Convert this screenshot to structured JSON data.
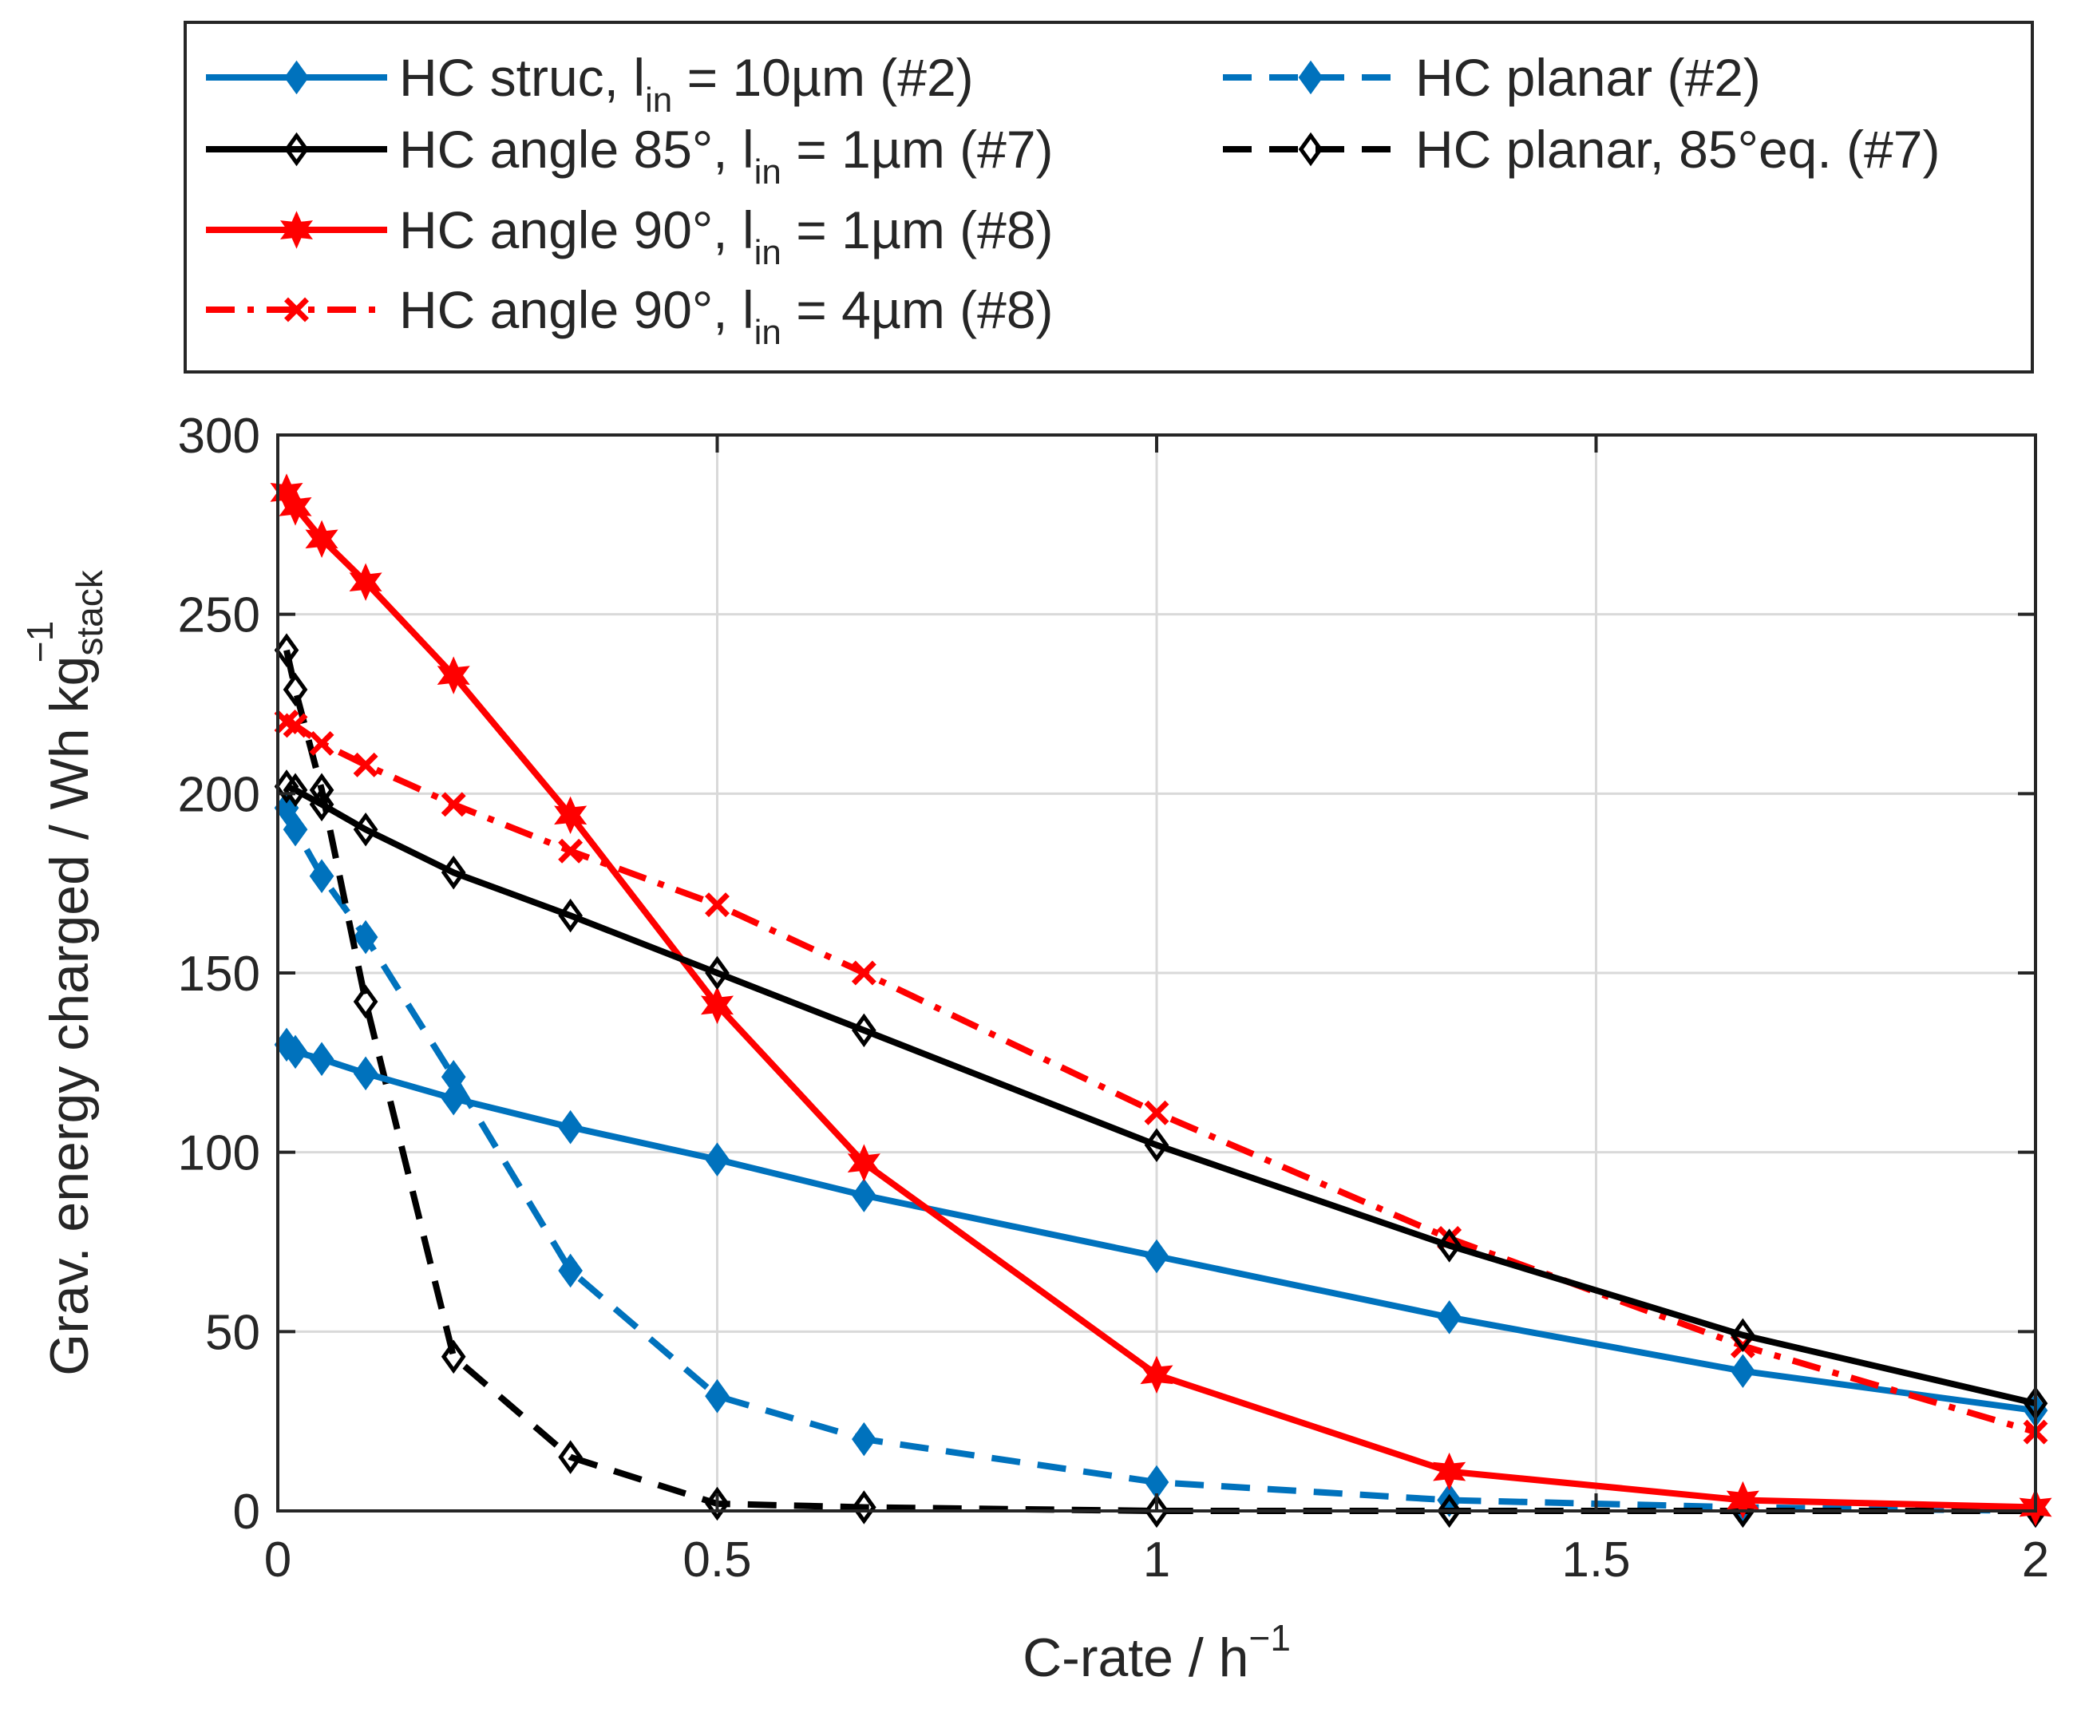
{
  "chart_data": {
    "type": "line",
    "xlabel": "C-rate / h",
    "xlabel_sup": "−1",
    "ylabel": "Grav. energy charged / Wh kg",
    "ylabel_sub": "stack",
    "ylabel_sup": "−1",
    "xlim": [
      0,
      2
    ],
    "ylim": [
      0,
      300
    ],
    "xticks": [
      0,
      0.5,
      1,
      1.5,
      2
    ],
    "xtick_labels": [
      "0",
      "0.5",
      "1",
      "1.5",
      "2"
    ],
    "yticks": [
      0,
      50,
      100,
      150,
      200,
      250,
      300
    ],
    "ytick_labels": [
      "0",
      "50",
      "100",
      "150",
      "200",
      "250",
      "300"
    ],
    "grid": true,
    "legend_position": "top, above plot",
    "series": [
      {
        "name_main": "HC struc, l",
        "name_sub": "in",
        "name_rest": " = 10µm (#2)",
        "color": "#0072BD",
        "dash": "solid",
        "marker": "diamond",
        "marker_fill": "#0072BD",
        "x": [
          0.01,
          0.02,
          0.05,
          0.1,
          0.2,
          0.333,
          0.5,
          0.667,
          1,
          1.333,
          1.667,
          2
        ],
        "y": [
          130,
          128,
          126,
          122,
          115,
          107,
          98,
          88,
          71,
          54,
          39,
          28
        ]
      },
      {
        "name_main": "HC angle 85°, l",
        "name_sub": "in",
        "name_rest": " = 1µm (#7)",
        "color": "#000000",
        "dash": "solid",
        "marker": "diamond",
        "marker_fill": "none",
        "x": [
          0.01,
          0.02,
          0.05,
          0.1,
          0.2,
          0.333,
          0.5,
          0.667,
          1,
          1.333,
          1.667,
          2
        ],
        "y": [
          202,
          201,
          197,
          190,
          178,
          166,
          150,
          134,
          102,
          74,
          49,
          30
        ]
      },
      {
        "name_main": "HC angle 90°, l",
        "name_sub": "in",
        "name_rest": " = 1µm (#8)",
        "color": "#FF0000",
        "dash": "solid",
        "marker": "hexagram",
        "marker_fill": "#FF0000",
        "x": [
          0.01,
          0.02,
          0.05,
          0.1,
          0.2,
          0.333,
          0.5,
          0.667,
          1,
          1.333,
          1.667,
          2
        ],
        "y": [
          284,
          280,
          271,
          259,
          233,
          194,
          141,
          97,
          38,
          11,
          3,
          1
        ]
      },
      {
        "name_main": "HC angle 90°, l",
        "name_sub": "in",
        "name_rest": " = 4µm (#8)",
        "color": "#FF0000",
        "dash": "dashdot",
        "marker": "x",
        "marker_fill": "none",
        "x": [
          0.01,
          0.02,
          0.05,
          0.1,
          0.2,
          0.333,
          0.5,
          0.667,
          1,
          1.333,
          1.667,
          2
        ],
        "y": [
          220,
          219,
          214,
          208,
          197,
          184,
          169,
          150,
          111,
          76,
          46,
          22
        ]
      },
      {
        "name_main": "HC planar (#2)",
        "name_sub": "",
        "name_rest": "",
        "color": "#0072BD",
        "dash": "dashed",
        "marker": "diamond",
        "marker_fill": "#0072BD",
        "x": [
          0.01,
          0.02,
          0.05,
          0.1,
          0.2,
          0.333,
          0.5,
          0.667,
          1,
          1.333,
          1.667,
          2
        ],
        "y": [
          196,
          190,
          177,
          160,
          121,
          67,
          32,
          20,
          8,
          3,
          1,
          0
        ]
      },
      {
        "name_main": "HC planar, 85°eq. (#7)",
        "name_sub": "",
        "name_rest": "",
        "color": "#000000",
        "dash": "dashed",
        "marker": "diamond",
        "marker_fill": "none",
        "x": [
          0.01,
          0.02,
          0.05,
          0.1,
          0.2,
          0.333,
          0.5,
          0.667,
          1,
          1.333,
          1.667,
          2
        ],
        "y": [
          240,
          229,
          201,
          142,
          43,
          15,
          2,
          1,
          0,
          0,
          0,
          0
        ]
      }
    ]
  }
}
